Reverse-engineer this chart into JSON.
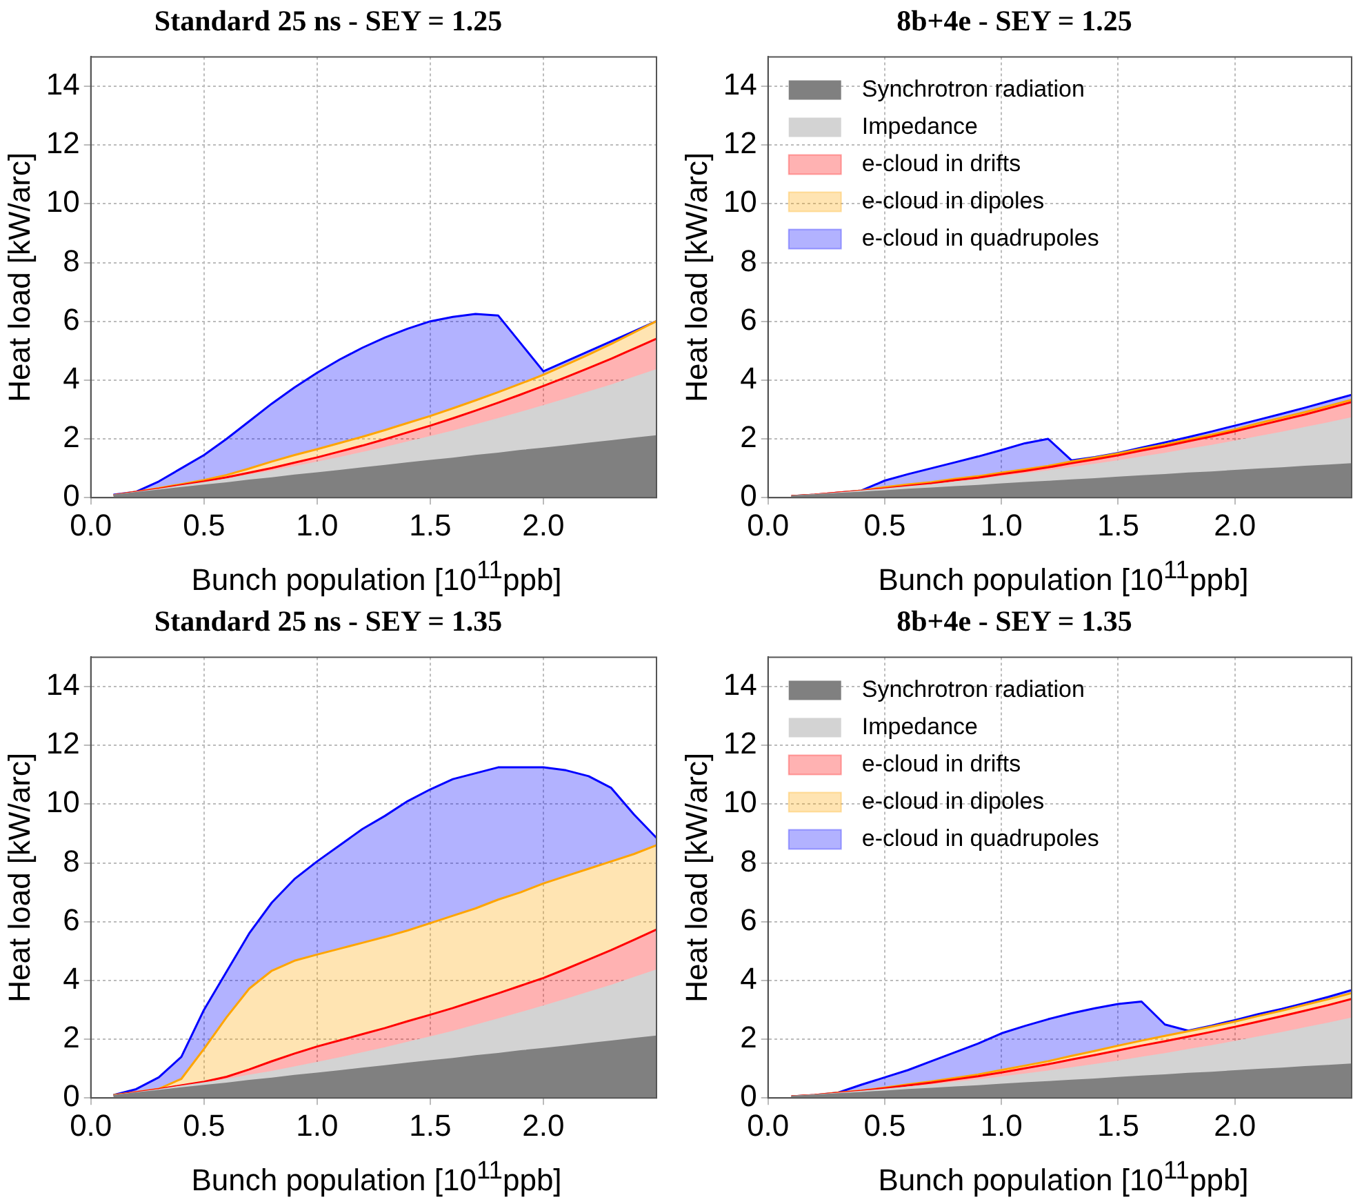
{
  "chart_data": [
    {
      "type": "area",
      "title": "Standard 25 ns - SEY = 1.25",
      "xlabel": "Bunch population [10$^{11}$ppb]",
      "ylabel": "Heat load [kW/arc]",
      "stacked": true,
      "grid": true,
      "legend": false,
      "x": [
        0.1,
        0.2,
        0.3,
        0.4,
        0.5,
        0.6,
        0.7,
        0.8,
        0.9,
        1.0,
        1.1,
        1.2,
        1.3,
        1.4,
        1.5,
        1.6,
        1.7,
        1.8,
        1.9,
        2.0,
        2.1,
        2.2,
        2.3,
        2.4,
        2.5
      ],
      "xlim": [
        0,
        2.5
      ],
      "xticks": [
        {
          "value": 0,
          "label": "0.0"
        },
        {
          "value": 0.5,
          "label": "0.5"
        },
        {
          "value": 1,
          "label": "1.0"
        },
        {
          "value": 1.5,
          "label": "1.5"
        },
        {
          "value": 2,
          "label": "2.0"
        }
      ],
      "ylim": [
        0,
        15
      ],
      "yticks": [
        0,
        2,
        4,
        6,
        8,
        10,
        12,
        14
      ],
      "series": [
        {
          "color": "#808080",
          "values": [
            0.08,
            0.17,
            0.25,
            0.34,
            0.42,
            0.5,
            0.59,
            0.67,
            0.76,
            0.84,
            0.92,
            1.01,
            1.09,
            1.18,
            1.26,
            1.34,
            1.43,
            1.51,
            1.6,
            1.68,
            1.76,
            1.85,
            1.93,
            2.02,
            2.1
          ]
        },
        {
          "color": "#d3d3d3",
          "values": [
            0.0,
            0.01,
            0.03,
            0.06,
            0.09,
            0.13,
            0.18,
            0.23,
            0.29,
            0.36,
            0.44,
            0.52,
            0.61,
            0.71,
            0.81,
            0.92,
            1.04,
            1.17,
            1.3,
            1.44,
            1.59,
            1.74,
            1.9,
            2.07,
            2.25
          ]
        },
        {
          "color": "#ff0000",
          "line_style": "solid",
          "values": [
            0.0,
            0.01,
            0.02,
            0.03,
            0.04,
            0.06,
            0.08,
            0.11,
            0.14,
            0.17,
            0.21,
            0.24,
            0.29,
            0.33,
            0.38,
            0.44,
            0.49,
            0.55,
            0.61,
            0.68,
            0.75,
            0.82,
            0.9,
            0.98,
            1.06
          ]
        },
        {
          "color": "#ffa500",
          "line_style": "solid",
          "values": [
            0.0,
            0.01,
            0.02,
            0.03,
            0.05,
            0.08,
            0.14,
            0.22,
            0.26,
            0.28,
            0.29,
            0.3,
            0.31,
            0.32,
            0.33,
            0.34,
            0.35,
            0.36,
            0.37,
            0.38,
            0.42,
            0.46,
            0.5,
            0.55,
            0.6
          ]
        },
        {
          "color": "#0000ff",
          "line_style": "solid",
          "values": [
            0.02,
            0.0,
            0.23,
            0.54,
            0.85,
            1.23,
            1.61,
            1.97,
            2.3,
            2.6,
            2.84,
            3.03,
            3.15,
            3.21,
            3.22,
            3.11,
            2.94,
            2.61,
            1.37,
            0.12,
            0.12,
            0.11,
            0.09,
            0.04,
            0.0
          ]
        }
      ]
    },
    {
      "type": "area",
      "title": "8b+4e - SEY = 1.25",
      "xlabel": "Bunch population [10$^{11}$ppb]",
      "ylabel": "Heat load [kW/arc]",
      "stacked": true,
      "grid": true,
      "legend": "top left",
      "x": [
        0.1,
        0.2,
        0.3,
        0.4,
        0.5,
        0.6,
        0.7,
        0.8,
        0.9,
        1.0,
        1.1,
        1.2,
        1.3,
        1.4,
        1.5,
        1.6,
        1.7,
        1.8,
        1.9,
        2.0,
        2.1,
        2.2,
        2.3,
        2.4,
        2.5
      ],
      "xlim": [
        0,
        2.5
      ],
      "xticks": [
        {
          "value": 0,
          "label": "0.0"
        },
        {
          "value": 0.5,
          "label": "0.5"
        },
        {
          "value": 1,
          "label": "1.0"
        },
        {
          "value": 1.5,
          "label": "1.5"
        },
        {
          "value": 2,
          "label": "2.0"
        }
      ],
      "ylim": [
        0,
        15
      ],
      "yticks": [
        0,
        2,
        4,
        6,
        8,
        10,
        12,
        14
      ],
      "series": [
        {
          "name": "Synchrotron radiation",
          "color": "#808080",
          "values": [
            0.05,
            0.09,
            0.14,
            0.18,
            0.23,
            0.28,
            0.32,
            0.37,
            0.41,
            0.46,
            0.51,
            0.55,
            0.6,
            0.64,
            0.69,
            0.74,
            0.78,
            0.83,
            0.87,
            0.92,
            0.97,
            1.01,
            1.06,
            1.1,
            1.15
          ]
        },
        {
          "name": "Impedance",
          "color": "#d3d3d3",
          "values": [
            0.0,
            0.01,
            0.02,
            0.04,
            0.06,
            0.09,
            0.12,
            0.16,
            0.2,
            0.25,
            0.3,
            0.36,
            0.42,
            0.49,
            0.56,
            0.64,
            0.72,
            0.81,
            0.9,
            1.0,
            1.1,
            1.21,
            1.32,
            1.44,
            1.56
          ]
        },
        {
          "name": "e-cloud in drifts",
          "color": "#ff0000",
          "line_style": "solid",
          "values": [
            0.0,
            0.0,
            0.01,
            0.01,
            0.02,
            0.03,
            0.04,
            0.06,
            0.07,
            0.09,
            0.1,
            0.12,
            0.15,
            0.17,
            0.19,
            0.22,
            0.25,
            0.28,
            0.31,
            0.34,
            0.38,
            0.42,
            0.45,
            0.5,
            0.54
          ]
        },
        {
          "name": "e-cloud in dipoles",
          "color": "#ffa500",
          "line_style": "solid",
          "values": [
            0.0,
            0.0,
            0.0,
            0.01,
            0.05,
            0.05,
            0.05,
            0.05,
            0.05,
            0.05,
            0.05,
            0.05,
            0.06,
            0.06,
            0.06,
            0.06,
            0.06,
            0.06,
            0.06,
            0.06,
            0.08,
            0.08,
            0.08,
            0.08,
            0.08
          ]
        },
        {
          "name": "e-cloud in quadrupoles",
          "color": "#0000ff",
          "line_style": "solid",
          "values": [
            0.0,
            0.0,
            0.0,
            0.0,
            0.22,
            0.35,
            0.47,
            0.56,
            0.67,
            0.77,
            0.89,
            0.92,
            0.04,
            0.02,
            0.02,
            0.04,
            0.07,
            0.08,
            0.11,
            0.13,
            0.12,
            0.13,
            0.15,
            0.16,
            0.17
          ]
        }
      ]
    },
    {
      "type": "area",
      "title": "Standard 25 ns - SEY = 1.35",
      "xlabel": "Bunch population [10$^{11}$ppb]",
      "ylabel": "Heat load [kW/arc]",
      "stacked": true,
      "grid": true,
      "legend": false,
      "x": [
        0.1,
        0.2,
        0.3,
        0.4,
        0.5,
        0.6,
        0.7,
        0.8,
        0.9,
        1.0,
        1.1,
        1.2,
        1.3,
        1.4,
        1.5,
        1.6,
        1.7,
        1.8,
        1.9,
        2.0,
        2.1,
        2.2,
        2.3,
        2.4,
        2.5
      ],
      "xlim": [
        0,
        2.5
      ],
      "xticks": [
        {
          "value": 0,
          "label": "0.0"
        },
        {
          "value": 0.5,
          "label": "0.5"
        },
        {
          "value": 1,
          "label": "1.0"
        },
        {
          "value": 1.5,
          "label": "1.5"
        },
        {
          "value": 2,
          "label": "2.0"
        }
      ],
      "ylim": [
        0,
        15
      ],
      "yticks": [
        0,
        2,
        4,
        6,
        8,
        10,
        12,
        14
      ],
      "series": [
        {
          "color": "#808080",
          "values": [
            0.08,
            0.17,
            0.25,
            0.34,
            0.42,
            0.5,
            0.59,
            0.67,
            0.76,
            0.84,
            0.92,
            1.01,
            1.09,
            1.18,
            1.26,
            1.34,
            1.43,
            1.51,
            1.6,
            1.68,
            1.76,
            1.85,
            1.93,
            2.02,
            2.1
          ]
        },
        {
          "color": "#d3d3d3",
          "values": [
            0.0,
            0.01,
            0.03,
            0.06,
            0.09,
            0.13,
            0.18,
            0.23,
            0.29,
            0.36,
            0.44,
            0.52,
            0.61,
            0.71,
            0.81,
            0.92,
            1.04,
            1.17,
            1.3,
            1.44,
            1.59,
            1.74,
            1.9,
            2.07,
            2.25
          ]
        },
        {
          "color": "#ff0000",
          "line_style": "solid",
          "values": [
            0.0,
            0.01,
            0.02,
            0.03,
            0.04,
            0.09,
            0.2,
            0.35,
            0.46,
            0.55,
            0.6,
            0.64,
            0.68,
            0.72,
            0.76,
            0.8,
            0.84,
            0.88,
            0.92,
            0.96,
            1.04,
            1.12,
            1.2,
            1.29,
            1.38
          ]
        },
        {
          "color": "#ffa500",
          "line_style": "solid",
          "values": [
            0.02,
            0.01,
            0.01,
            0.22,
            1.12,
            2.03,
            2.75,
            3.08,
            3.16,
            3.13,
            3.12,
            3.11,
            3.1,
            3.09,
            3.12,
            3.14,
            3.14,
            3.19,
            3.18,
            3.22,
            3.16,
            3.09,
            3.02,
            2.92,
            2.87
          ]
        },
        {
          "color": "#0000ff",
          "line_style": "solid",
          "values": [
            0.0,
            0.1,
            0.39,
            0.75,
            1.33,
            1.55,
            1.88,
            2.32,
            2.78,
            3.17,
            3.52,
            3.87,
            4.12,
            4.4,
            4.55,
            4.65,
            4.6,
            4.5,
            4.25,
            3.95,
            3.6,
            3.15,
            2.5,
            1.35,
            0.25
          ]
        }
      ]
    },
    {
      "type": "area",
      "title": "8b+4e - SEY = 1.35",
      "xlabel": "Bunch population [10$^{11}$ppb]",
      "ylabel": "Heat load [kW/arc]",
      "stacked": true,
      "grid": true,
      "legend": "top left",
      "x": [
        0.1,
        0.2,
        0.3,
        0.4,
        0.5,
        0.6,
        0.7,
        0.8,
        0.9,
        1.0,
        1.1,
        1.2,
        1.3,
        1.4,
        1.5,
        1.6,
        1.7,
        1.8,
        1.9,
        2.0,
        2.1,
        2.2,
        2.3,
        2.4,
        2.5
      ],
      "xlim": [
        0,
        2.5
      ],
      "xticks": [
        {
          "value": 0,
          "label": "0.0"
        },
        {
          "value": 0.5,
          "label": "0.5"
        },
        {
          "value": 1,
          "label": "1.0"
        },
        {
          "value": 1.5,
          "label": "1.5"
        },
        {
          "value": 2,
          "label": "2.0"
        }
      ],
      "ylim": [
        0,
        15
      ],
      "yticks": [
        0,
        2,
        4,
        6,
        8,
        10,
        12,
        14
      ],
      "series": [
        {
          "name": "Synchrotron radiation",
          "color": "#808080",
          "values": [
            0.05,
            0.09,
            0.14,
            0.18,
            0.23,
            0.28,
            0.32,
            0.37,
            0.41,
            0.46,
            0.51,
            0.55,
            0.6,
            0.64,
            0.69,
            0.74,
            0.78,
            0.83,
            0.87,
            0.92,
            0.97,
            1.01,
            1.06,
            1.1,
            1.15
          ]
        },
        {
          "name": "Impedance",
          "color": "#d3d3d3",
          "values": [
            0.0,
            0.01,
            0.02,
            0.04,
            0.06,
            0.09,
            0.12,
            0.16,
            0.2,
            0.25,
            0.3,
            0.36,
            0.42,
            0.49,
            0.56,
            0.64,
            0.72,
            0.81,
            0.9,
            1.0,
            1.1,
            1.21,
            1.32,
            1.44,
            1.56
          ]
        },
        {
          "name": "e-cloud in drifts",
          "color": "#ff0000",
          "line_style": "solid",
          "values": [
            0.0,
            0.0,
            0.01,
            0.02,
            0.04,
            0.06,
            0.08,
            0.1,
            0.13,
            0.16,
            0.2,
            0.24,
            0.29,
            0.33,
            0.37,
            0.4,
            0.43,
            0.45,
            0.48,
            0.5,
            0.53,
            0.56,
            0.59,
            0.62,
            0.66
          ]
        },
        {
          "name": "e-cloud in dipoles",
          "color": "#ffa500",
          "line_style": "solid",
          "values": [
            0.0,
            0.0,
            0.01,
            0.01,
            0.02,
            0.03,
            0.04,
            0.05,
            0.06,
            0.08,
            0.09,
            0.1,
            0.12,
            0.14,
            0.16,
            0.17,
            0.18,
            0.18,
            0.18,
            0.18,
            0.19,
            0.19,
            0.2,
            0.2,
            0.2
          ]
        },
        {
          "name": "e-cloud in quadrupoles",
          "color": "#0000ff",
          "line_style": "solid",
          "values": [
            0.0,
            0.0,
            0.0,
            0.2,
            0.35,
            0.49,
            0.69,
            0.87,
            1.05,
            1.25,
            1.35,
            1.43,
            1.45,
            1.45,
            1.42,
            1.33,
            0.39,
            0.02,
            0.03,
            0.05,
            0.06,
            0.06,
            0.06,
            0.08,
            0.1
          ]
        }
      ]
    }
  ]
}
